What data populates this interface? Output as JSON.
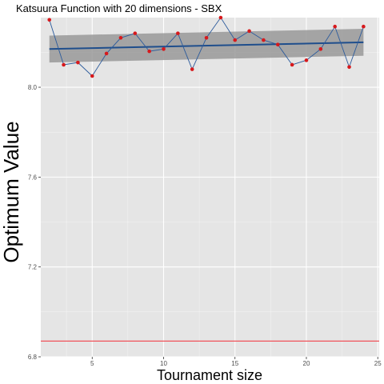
{
  "chart_data": {
    "type": "line",
    "title": "Katsuura Function with 20 dimensions -  SBX",
    "xlabel": "Tournament size",
    "ylabel": "Optimum Value",
    "xlim": [
      1.4,
      25.1
    ],
    "ylim": [
      6.8,
      8.31
    ],
    "x_ticks": [
      5,
      10,
      15,
      20,
      25
    ],
    "y_ticks": [
      6.8,
      7.2,
      7.6,
      8.0
    ],
    "x_tick_labels": [
      "5",
      "10",
      "15",
      "20",
      "25"
    ],
    "y_tick_labels": [
      "6.8",
      "7.2",
      "7.6",
      "8.0"
    ],
    "grid": true,
    "series": [
      {
        "x": [
          2,
          3,
          4,
          5,
          6,
          7,
          8,
          9,
          10,
          11,
          12,
          13,
          14,
          15,
          16,
          17,
          18,
          19,
          20,
          21,
          22,
          23,
          24
        ],
        "y": [
          8.3,
          8.1,
          8.11,
          8.05,
          8.15,
          8.22,
          8.24,
          8.16,
          8.17,
          8.24,
          8.08,
          8.22,
          8.31,
          8.21,
          8.25,
          8.21,
          8.19,
          8.1,
          8.12,
          8.17,
          8.27,
          8.09,
          8.27
        ]
      }
    ],
    "trend": {
      "x": [
        2,
        24
      ],
      "y": [
        8.17,
        8.2
      ],
      "ci_lower": [
        8.11,
        8.14
      ],
      "ci_upper": [
        8.23,
        8.26
      ]
    },
    "reference_line_y": 6.87,
    "colors": {
      "panel": "#e5e5e5",
      "grid_major": "#ffffff",
      "line": "#2c5b9c",
      "points": "#d7191c",
      "trend": "#1f4e8c",
      "ribbon": "#999999",
      "reference": "#f0545b"
    }
  }
}
